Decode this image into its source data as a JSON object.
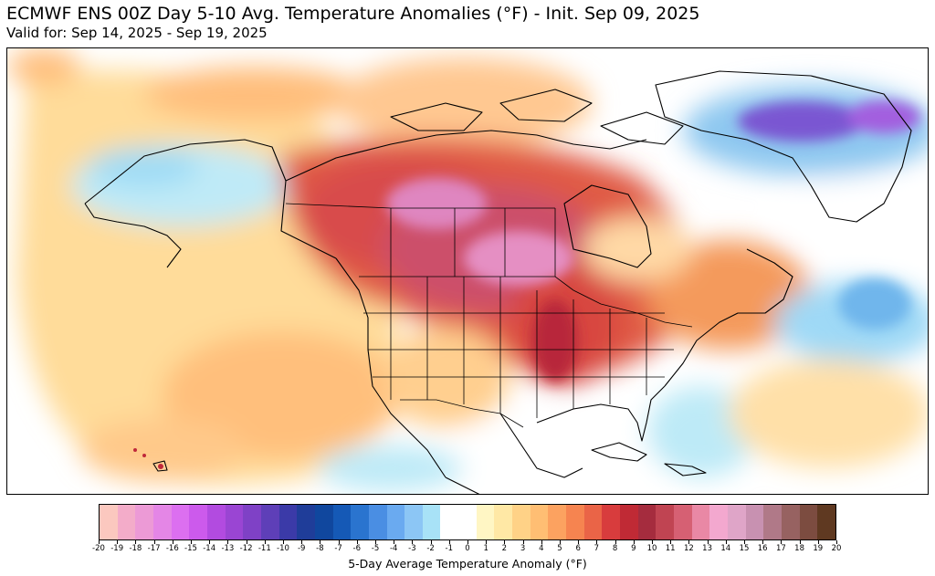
{
  "title": "ECMWF ENS 00Z Day 5-10 Avg. Temperature Anomalies (°F) - Init. Sep 09, 2025",
  "subtitle": "Valid for: Sep 14, 2025 - Sep 19, 2025",
  "colorbar": {
    "label": "5-Day Average Temperature Anomaly (°F)",
    "ticks": [
      "-20",
      "-19",
      "-18",
      "-17",
      "-16",
      "-15",
      "-14",
      "-13",
      "-12",
      "-11",
      "-10",
      "-9",
      "-8",
      "-7",
      "-6",
      "-5",
      "-4",
      "-3",
      "-2",
      "-1",
      "0",
      "1",
      "2",
      "3",
      "4",
      "5",
      "6",
      "7",
      "8",
      "9",
      "10",
      "11",
      "12",
      "13",
      "14",
      "15",
      "16",
      "17",
      "18",
      "19",
      "20"
    ],
    "colors": [
      "#fbc8bf",
      "#f3acc9",
      "#ec9ad6",
      "#e486e6",
      "#dc6ff0",
      "#cc5aec",
      "#b24be0",
      "#9a45d3",
      "#7f41c6",
      "#5e3fb8",
      "#3b3aa8",
      "#1f3d99",
      "#10479e",
      "#1559b6",
      "#2a74cf",
      "#4a8ee3",
      "#6aaaf0",
      "#8cc6f5",
      "#a8e2f7",
      "#ffffff",
      "#ffffff",
      "#fff6c4",
      "#ffe8a5",
      "#ffd287",
      "#ffbe73",
      "#fca260",
      "#f68450",
      "#ea6447",
      "#d83c3d",
      "#c02a35",
      "#a52c3e",
      "#c04452",
      "#d66073",
      "#e988a5",
      "#f3a8cf",
      "#dfa5c8",
      "#c891b1",
      "#b07988",
      "#976261",
      "#7c4c40",
      "#5f3921"
    ]
  },
  "map": {
    "region": "North America",
    "features": [
      "coastlines",
      "country-borders",
      "state-province-borders"
    ]
  }
}
